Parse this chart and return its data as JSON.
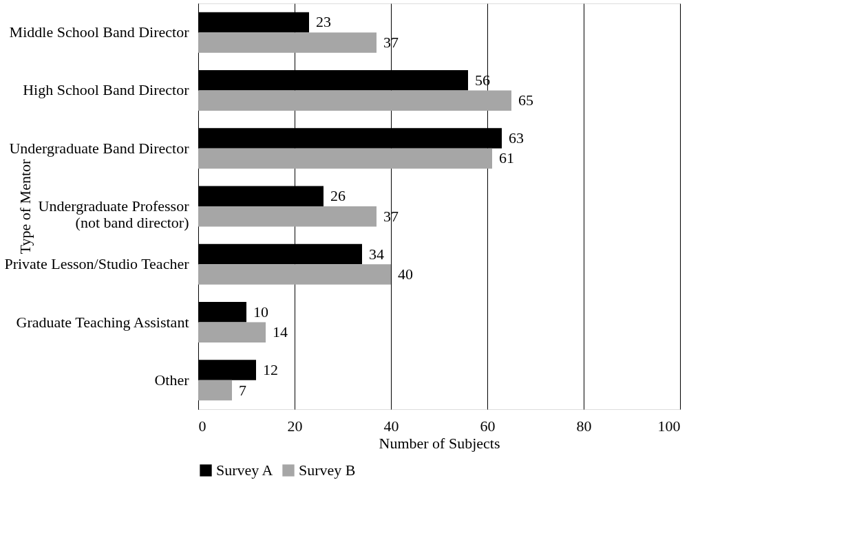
{
  "chart_data": {
    "type": "bar",
    "orientation": "horizontal",
    "xlabel": "Number of Subjects",
    "ylabel": "Type of Mentor",
    "categories": [
      "Middle School Band Director",
      "High School Band Director",
      "Undergraduate Band Director",
      "Undergraduate Professor (not band director)",
      "Private Lesson/Studio Teacher",
      "Graduate Teaching Assistant",
      "Other"
    ],
    "series": [
      {
        "name": "Survey A",
        "color": "#000000",
        "values": [
          23,
          56,
          63,
          26,
          34,
          10,
          12
        ]
      },
      {
        "name": "Survey B",
        "color": "#a6a6a6",
        "values": [
          37,
          65,
          61,
          37,
          40,
          14,
          7
        ]
      }
    ],
    "xlim": [
      0,
      100
    ],
    "xticks": [
      0,
      20,
      40,
      60,
      80,
      100
    ],
    "grid": "x",
    "legend": "bottom",
    "data_labels": true
  }
}
